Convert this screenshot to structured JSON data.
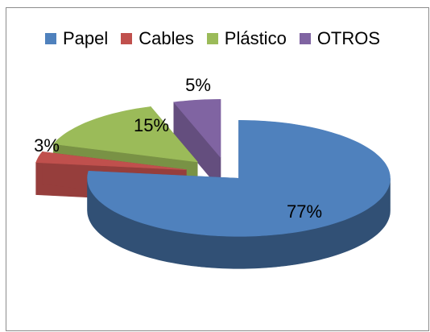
{
  "chart_data": {
    "type": "pie",
    "style": "3d-exploded",
    "legend_position": "top",
    "categories": [
      "Papel",
      "Cables",
      "Plástico",
      "OTROS"
    ],
    "values": [
      77,
      3,
      15,
      5
    ],
    "data_labels": [
      "77%",
      "3%",
      "15%",
      "5%"
    ],
    "colors": [
      "#4f81bd",
      "#c0504d",
      "#9bbb59",
      "#8064a2"
    ],
    "title": ""
  }
}
